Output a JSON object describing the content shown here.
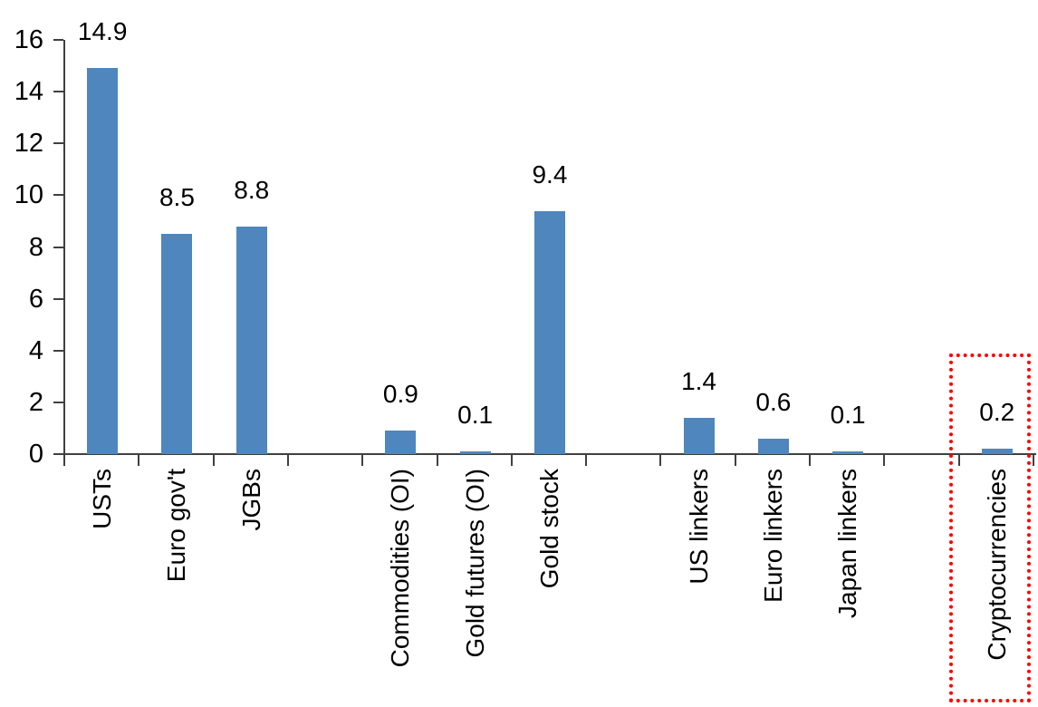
{
  "chart_data": {
    "type": "bar",
    "categories": [
      "USTs",
      "Euro gov't",
      "JGBs",
      "",
      "Commodities (OI)",
      "Gold futures (OI)",
      "Gold stock",
      "",
      "US linkers",
      "Euro linkers",
      "Japan linkers",
      "",
      "Cryptocurrencies"
    ],
    "values": [
      14.9,
      8.5,
      8.8,
      null,
      0.9,
      0.1,
      9.4,
      null,
      1.4,
      0.6,
      0.1,
      null,
      0.2
    ],
    "data_labels": [
      "14.9",
      "8.5",
      "8.8",
      "",
      "0.9",
      "0.1",
      "9.4",
      "",
      "1.4",
      "0.6",
      "0.1",
      "",
      "0.2"
    ],
    "title": "",
    "xlabel": "",
    "ylabel": "",
    "ylim": [
      0,
      16
    ],
    "yticks": [
      0,
      2,
      4,
      6,
      8,
      10,
      12,
      14,
      16
    ],
    "grid": false,
    "legend": null,
    "bar_color": "#4E86BD",
    "axis_color": "#404040",
    "text_color": "#000000",
    "highlight": {
      "category": "Cryptocurrencies",
      "style": "red-dotted-box",
      "color": "#FF0000"
    }
  }
}
